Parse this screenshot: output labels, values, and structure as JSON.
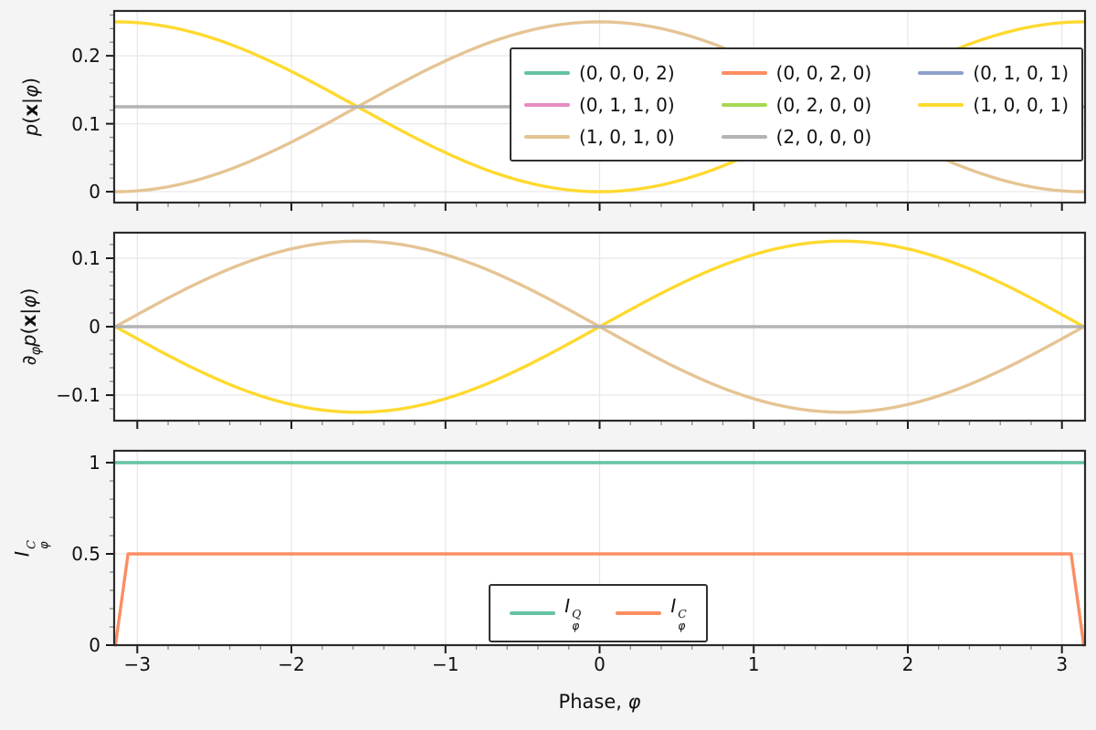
{
  "figure": {
    "bg": "#f4f4f4",
    "panel_bg": "#ffffff",
    "grid_color": "#e7e7e7",
    "spine_color": "#2b2b2b",
    "tick_color": "#1a1a1a",
    "minor_tick_color": "#8a8a8a",
    "text_color": "#111111",
    "xlabel": "Phase, φ",
    "xlabel_tokens": [
      {
        "t": "Phase, ",
        "s": "n"
      },
      {
        "t": "φ",
        "s": "i"
      }
    ]
  },
  "chart_data": [
    {
      "id": "prob",
      "type": "line",
      "title": "",
      "ylabel": "p(x|φ)",
      "ylabel_tokens": [
        {
          "t": "p",
          "s": "i"
        },
        {
          "t": "(",
          "s": "n"
        },
        {
          "t": "x",
          "s": "b"
        },
        {
          "t": "|",
          "s": "n"
        },
        {
          "t": "φ",
          "s": "i"
        },
        {
          "t": ")",
          "s": "n"
        }
      ],
      "xlim": [
        -3.15,
        3.15
      ],
      "ylim": [
        -0.016,
        0.266
      ],
      "x_range": [
        -3.14159,
        3.14159
      ],
      "grid": true,
      "xticks": {
        "values": [
          -3,
          -2,
          -1,
          0,
          1,
          2,
          3
        ],
        "minor_step": 0.2
      },
      "yticks": {
        "values": [
          0,
          0.1,
          0.2
        ],
        "labels": [
          "0",
          "0.1",
          "0.2"
        ],
        "minor_step": 0.02
      },
      "series": [
        {
          "name": "(1, 0, 0, 1)",
          "color": "#ffd92f",
          "fn": {
            "type": "cos",
            "offset": 0.125,
            "amp": -0.125
          }
        },
        {
          "name": "(1, 0, 1, 0)",
          "color": "#e5c494",
          "fn": {
            "type": "cos",
            "offset": 0.125,
            "amp": 0.125
          }
        },
        {
          "name": "(2, 0, 0, 0)",
          "color": "#b3b3b3",
          "fn": {
            "type": "const",
            "value": 0.125
          }
        }
      ],
      "legend": {
        "position": "upper right",
        "ncol": 3,
        "entries": [
          {
            "label": "(0, 0, 0, 2)",
            "color": "#66c2a5"
          },
          {
            "label": "(0, 1, 1, 0)",
            "color": "#e78ac3"
          },
          {
            "label": "(1, 0, 1, 0)",
            "color": "#e5c494"
          },
          {
            "label": "(0, 0, 2, 0)",
            "color": "#fc8d62"
          },
          {
            "label": "(0, 2, 0, 0)",
            "color": "#a6d854"
          },
          {
            "label": "(2, 0, 0, 0)",
            "color": "#b3b3b3"
          },
          {
            "label": "(0, 1, 0, 1)",
            "color": "#8da0cb"
          },
          {
            "label": "(1, 0, 0, 1)",
            "color": "#ffd92f"
          }
        ]
      }
    },
    {
      "id": "deriv",
      "type": "line",
      "title": "",
      "ylabel": "∂_φ p(x|φ)",
      "ylabel_tokens": [
        {
          "t": "∂",
          "s": "i"
        },
        {
          "t": "φ",
          "s": "isub"
        },
        {
          "t": "p",
          "s": "i"
        },
        {
          "t": "(",
          "s": "n"
        },
        {
          "t": "x",
          "s": "b"
        },
        {
          "t": "|",
          "s": "n"
        },
        {
          "t": "φ",
          "s": "i"
        },
        {
          "t": ")",
          "s": "n"
        }
      ],
      "xlim": [
        -3.15,
        3.15
      ],
      "ylim": [
        -0.1373,
        0.1373
      ],
      "x_range": [
        -3.14159,
        3.14159
      ],
      "grid": true,
      "xticks": {
        "values": [
          -3,
          -2,
          -1,
          0,
          1,
          2,
          3
        ],
        "minor_step": 0.2
      },
      "yticks": {
        "values": [
          -0.1,
          0,
          0.1
        ],
        "labels": [
          "−0.1",
          "0",
          "0.1"
        ],
        "minor_step": 0.02
      },
      "series": [
        {
          "name": "(1, 0, 0, 1)",
          "color": "#ffd92f",
          "fn": {
            "type": "sin",
            "amp": 0.125
          }
        },
        {
          "name": "(1, 0, 1, 0)",
          "color": "#e5c494",
          "fn": {
            "type": "sin",
            "amp": -0.125
          }
        },
        {
          "name": "(2, 0, 0, 0)",
          "color": "#b3b3b3",
          "fn": {
            "type": "const",
            "value": 0
          }
        }
      ]
    },
    {
      "id": "fisher",
      "type": "line",
      "title": "",
      "ylabel": "I_φ^C",
      "ylabel_tokens": [
        {
          "t": "I",
          "s": "i"
        },
        {
          "s": "ss",
          "sup": "C",
          "sub": "φ"
        }
      ],
      "xlim": [
        -3.15,
        3.15
      ],
      "ylim": [
        0,
        1.065
      ],
      "x_range": [
        -3.14159,
        3.14159
      ],
      "grid": true,
      "xticks": {
        "values": [
          -3,
          -2,
          -1,
          0,
          1,
          2,
          3
        ],
        "labels": [
          "−3",
          "−2",
          "−1",
          "0",
          "1",
          "2",
          "3"
        ],
        "minor_step": 0.2
      },
      "yticks": {
        "values": [
          0,
          0.5,
          1
        ],
        "labels": [
          "0",
          "0.5",
          "1"
        ],
        "minor_step": 0.1
      },
      "series": [
        {
          "name": "I_φ^Q",
          "color": "#66c2a5",
          "fn": {
            "type": "const",
            "value": 1.0
          }
        },
        {
          "name": "I_φ^C",
          "color": "#fc8d62",
          "fn": {
            "type": "points",
            "pts": [
              [
                -3.14159,
                0
              ],
              [
                -3.06,
                0.5
              ],
              [
                3.06,
                0.5
              ],
              [
                3.14159,
                0
              ]
            ]
          }
        }
      ],
      "legend": {
        "position": "lower center",
        "ncol": 2,
        "entries": [
          {
            "label": "I_φ^Q",
            "color": "#66c2a5",
            "label_tokens": [
              {
                "t": "I",
                "s": "i"
              },
              {
                "s": "ss",
                "sup": "Q",
                "sub": "φ"
              }
            ]
          },
          {
            "label": "I_φ^C",
            "color": "#fc8d62",
            "label_tokens": [
              {
                "t": "I",
                "s": "i"
              },
              {
                "s": "ss",
                "sup": "C",
                "sub": "φ"
              }
            ]
          }
        ]
      }
    }
  ]
}
